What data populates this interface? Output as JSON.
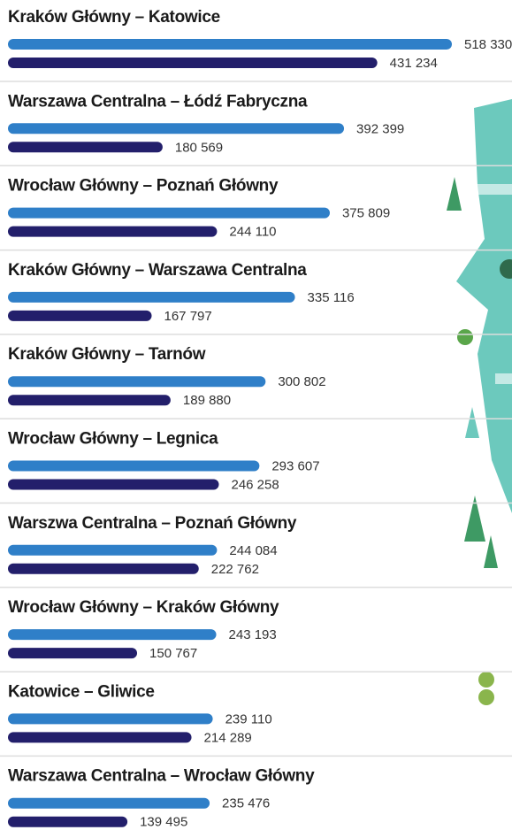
{
  "chart_data": {
    "type": "bar",
    "categories": [
      "Kraków Główny – Katowice",
      "Warszawa Centralna – Łódź Fabryczna",
      "Wrocław Główny – Poznań Główny",
      "Kraków Główny – Warszawa Centralna",
      "Kraków Główny – Tarnów",
      "Wrocław Główny – Legnica",
      "Warszwa Centralna – Poznań Główny",
      "Wrocław Główny – Kraków Główny",
      "Katowice – Gliwice",
      "Warszawa Centralna – Wrocław Główny"
    ],
    "series": [
      {
        "color": "#2f7fc8",
        "values": [
          518330,
          392399,
          375809,
          335116,
          300802,
          293607,
          244084,
          243193,
          239110,
          235476
        ],
        "value_labels": [
          "518 330",
          "392 399",
          "375 809",
          "335 116",
          "300 802",
          "293 607",
          "244 084",
          "243 193",
          "239 110",
          "235 476"
        ]
      },
      {
        "color": "#231f6b",
        "values": [
          431234,
          180569,
          244110,
          167797,
          189880,
          246258,
          222762,
          150767,
          214289,
          139495
        ],
        "value_labels": [
          "431 234",
          "180 569",
          "244 110",
          "167 797",
          "189 880",
          "246 258",
          "222 762",
          "150 767",
          "214 289",
          "139 495"
        ]
      }
    ]
  }
}
